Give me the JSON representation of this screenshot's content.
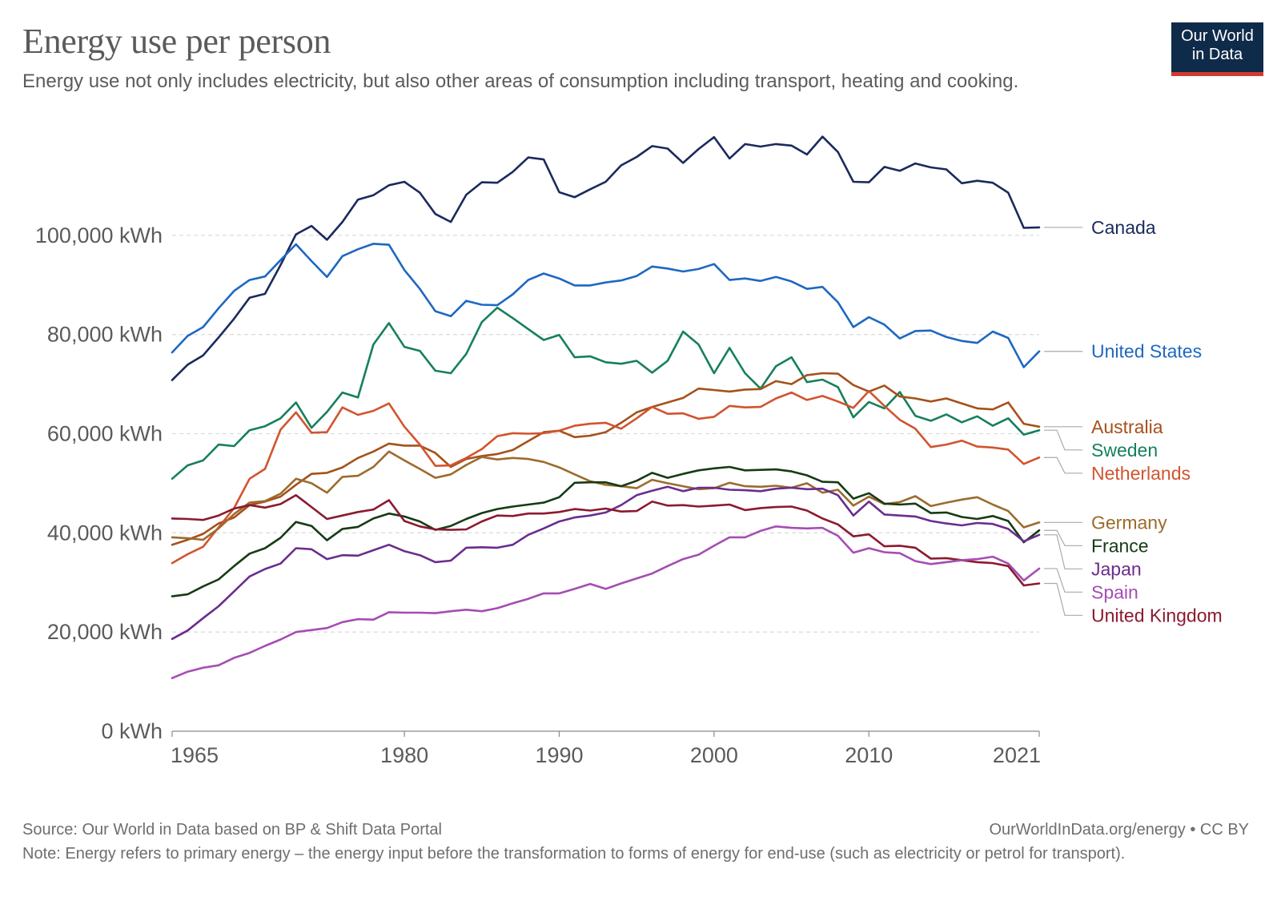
{
  "header": {
    "title": "Energy use per person",
    "subtitle": "Energy use not only includes electricity, but also other areas of consumption including transport, heating and cooking."
  },
  "logo": {
    "line1": "Our World",
    "line2": "in Data",
    "bg_color": "#0f2b4a",
    "bar_color": "#d43a2f"
  },
  "footer": {
    "source": "Source: Our World in Data based on BP & Shift Data Portal",
    "url": "OurWorldInData.org/energy • CC BY",
    "note": "Note: Energy refers to primary energy – the energy input before the transformation to forms of energy for end-use (such as electricity or petrol for transport)."
  },
  "chart_data": {
    "type": "line",
    "title": "Energy use per person",
    "xlim": [
      1965,
      2021
    ],
    "ylim": [
      0,
      120000
    ],
    "x_ticks": [
      1965,
      1980,
      1990,
      2000,
      2010,
      2021
    ],
    "y_ticks": [
      {
        "value": 0,
        "label": "0 kWh"
      },
      {
        "value": 20000,
        "label": "20,000 kWh"
      },
      {
        "value": 40000,
        "label": "40,000 kWh"
      },
      {
        "value": 60000,
        "label": "60,000 kWh"
      },
      {
        "value": 80000,
        "label": "80,000 kWh"
      },
      {
        "value": 100000,
        "label": "100,000 kWh"
      }
    ],
    "grid": "horizontal dashed",
    "legend": "right (end-of-line labels)",
    "series": [
      {
        "name": "Canada",
        "color": "#1b2a5c",
        "values": [
          70800,
          73900,
          75800,
          79400,
          83200,
          87400,
          88200,
          94000,
          100200,
          101900,
          99100,
          102700,
          107200,
          108100,
          110100,
          110800,
          108600,
          104300,
          102700,
          108200,
          110700,
          110600,
          112800,
          115700,
          115300,
          108700,
          107700,
          109300,
          110800,
          114100,
          115800,
          118000,
          117500,
          114600,
          117400,
          119800,
          115500,
          118400,
          117900,
          118400,
          118100,
          116300,
          119900,
          116800,
          110800,
          110700,
          113800,
          113000,
          114500,
          113700,
          113300,
          110500,
          111000,
          110600,
          108600,
          101500,
          101600
        ]
      },
      {
        "name": "United States",
        "color": "#1e68c2",
        "values": [
          76400,
          79700,
          81500,
          85300,
          88800,
          91000,
          91700,
          95000,
          98200,
          94800,
          91600,
          95800,
          97200,
          98300,
          98100,
          93000,
          89200,
          84700,
          83700,
          86800,
          86000,
          85900,
          88100,
          91000,
          92300,
          91300,
          89900,
          89900,
          90500,
          90900,
          91800,
          93700,
          93300,
          92700,
          93200,
          94200,
          91000,
          91300,
          90800,
          91600,
          90700,
          89200,
          89600,
          86500,
          81500,
          83500,
          82000,
          79200,
          80700,
          80800,
          79500,
          78700,
          78300,
          80600,
          79300,
          73400,
          76600
        ]
      },
      {
        "name": "Sweden",
        "color": "#16805c",
        "values": [
          50900,
          53600,
          54600,
          57800,
          57500,
          60700,
          61500,
          63100,
          66300,
          61200,
          64400,
          68300,
          67300,
          78000,
          82300,
          77500,
          76700,
          72700,
          72200,
          76100,
          82500,
          85400,
          83300,
          81100,
          78900,
          79900,
          75400,
          75600,
          74400,
          74100,
          74700,
          72300,
          74700,
          80600,
          78000,
          72200,
          77300,
          72200,
          69100,
          73600,
          75400,
          70400,
          70900,
          69400,
          63300,
          66400,
          65100,
          68400,
          63600,
          62600,
          63900,
          62300,
          63500,
          61600,
          63100,
          59800,
          60700
        ]
      },
      {
        "name": "Australia",
        "color": "#a5511a",
        "values": [
          37600,
          38600,
          39800,
          41900,
          43100,
          45600,
          46300,
          47300,
          49700,
          51900,
          52100,
          53200,
          55100,
          56400,
          58000,
          57600,
          57600,
          56100,
          53300,
          54900,
          55500,
          55900,
          56700,
          58500,
          60300,
          60600,
          59300,
          59600,
          60300,
          62200,
          64300,
          65400,
          66300,
          67200,
          69100,
          68800,
          68500,
          68900,
          69000,
          70600,
          70000,
          71800,
          72200,
          72100,
          69800,
          68500,
          69700,
          67500,
          67100,
          66500,
          67100,
          66100,
          65100,
          64900,
          66300,
          62000,
          61400
        ]
      },
      {
        "name": "Netherlands",
        "color": "#d1542f",
        "values": [
          33900,
          35700,
          37200,
          41100,
          45000,
          50900,
          52900,
          60800,
          64300,
          60200,
          60300,
          65300,
          63800,
          64600,
          66100,
          61400,
          57800,
          53500,
          53600,
          55100,
          56900,
          59500,
          60100,
          60000,
          60100,
          60600,
          61600,
          62000,
          62200,
          61000,
          63100,
          65400,
          64000,
          64100,
          63000,
          63400,
          65600,
          65300,
          65400,
          67100,
          68300,
          66800,
          67600,
          66500,
          65200,
          68600,
          65600,
          62800,
          61000,
          57300,
          57800,
          58600,
          57400,
          57200,
          56800,
          53900,
          55200
        ]
      },
      {
        "name": "Germany",
        "color": "#9c6b2c",
        "values": [
          39100,
          38900,
          38600,
          40900,
          43800,
          46100,
          46400,
          47900,
          50900,
          50000,
          48100,
          51300,
          51500,
          53300,
          56400,
          54600,
          52900,
          51100,
          51800,
          53700,
          55300,
          54800,
          55100,
          54900,
          54300,
          53200,
          51800,
          50400,
          49700,
          49400,
          49000,
          50700,
          50000,
          49400,
          48800,
          49000,
          50100,
          49400,
          49300,
          49500,
          49100,
          50000,
          48100,
          48700,
          45500,
          47300,
          45800,
          46200,
          47400,
          45400,
          46100,
          46700,
          47200,
          45700,
          44400,
          41100,
          42100
        ]
      },
      {
        "name": "France",
        "color": "#163b14",
        "values": [
          27200,
          27600,
          29200,
          30600,
          33300,
          35800,
          36900,
          39000,
          42200,
          41400,
          38500,
          40800,
          41200,
          42900,
          43900,
          43300,
          42300,
          40600,
          41400,
          42800,
          44000,
          44800,
          45300,
          45700,
          46100,
          47200,
          50100,
          50200,
          50200,
          49400,
          50500,
          52100,
          51100,
          51900,
          52600,
          53000,
          53300,
          52600,
          52700,
          52800,
          52400,
          51600,
          50300,
          50200,
          46900,
          48000,
          45900,
          45700,
          45900,
          44000,
          44100,
          43200,
          42800,
          43400,
          42400,
          38100,
          40500
        ]
      },
      {
        "name": "Japan",
        "color": "#6a2d8e",
        "values": [
          18600,
          20300,
          22800,
          25200,
          28200,
          31200,
          32700,
          33800,
          36900,
          36700,
          34700,
          35500,
          35400,
          36500,
          37600,
          36300,
          35500,
          34100,
          34400,
          37000,
          37100,
          37000,
          37600,
          39600,
          40900,
          42300,
          43100,
          43500,
          44100,
          45600,
          47600,
          48500,
          49300,
          48400,
          49100,
          49100,
          48700,
          48600,
          48400,
          48900,
          49100,
          48800,
          48900,
          47600,
          43500,
          46300,
          43700,
          43500,
          43300,
          42400,
          41900,
          41500,
          42000,
          41800,
          40800,
          38300,
          39600
        ]
      },
      {
        "name": "United Kingdom",
        "color": "#8b1a2f",
        "values": [
          42900,
          42800,
          42600,
          43500,
          44900,
          45600,
          45100,
          45800,
          47600,
          45200,
          42800,
          43500,
          44200,
          44700,
          46600,
          42400,
          41300,
          40700,
          40600,
          40700,
          42300,
          43500,
          43400,
          43900,
          43900,
          44200,
          44800,
          44500,
          44900,
          44300,
          44400,
          46300,
          45500,
          45600,
          45300,
          45500,
          45700,
          44600,
          45000,
          45200,
          45300,
          44500,
          42900,
          41700,
          39300,
          39700,
          37300,
          37400,
          37000,
          34800,
          34900,
          34500,
          34100,
          33900,
          33300,
          29400,
          29800
        ]
      },
      {
        "name": "Spain",
        "color": "#a54db3",
        "values": [
          10700,
          12000,
          12800,
          13300,
          14800,
          15800,
          17200,
          18500,
          20000,
          20400,
          20800,
          22000,
          22600,
          22500,
          24000,
          23900,
          23900,
          23800,
          24200,
          24500,
          24200,
          24800,
          25800,
          26700,
          27800,
          27800,
          28700,
          29700,
          28700,
          29800,
          30800,
          31800,
          33300,
          34700,
          35600,
          37400,
          39100,
          39100,
          40400,
          41300,
          41000,
          40900,
          41000,
          39400,
          36000,
          36900,
          36100,
          35900,
          34300,
          33700,
          34100,
          34500,
          34700,
          35200,
          33800,
          30400,
          32800
        ]
      }
    ]
  }
}
